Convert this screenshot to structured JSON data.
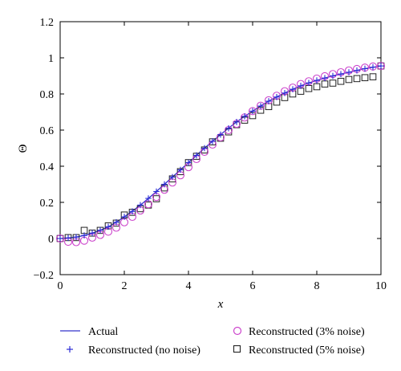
{
  "chart_data": {
    "type": "line",
    "title": "",
    "xlabel": "x",
    "ylabel": "Θ",
    "xlim": [
      0,
      10
    ],
    "ylim": [
      -0.2,
      1.2
    ],
    "xticks": [
      0,
      2,
      4,
      6,
      8,
      10
    ],
    "xtick_labels": [
      "0",
      "2",
      "4",
      "6",
      "8",
      "10"
    ],
    "yticks": [
      -0.2,
      0,
      0.2,
      0.4,
      0.6,
      0.8,
      1,
      1.2
    ],
    "ytick_labels": [
      "−0.2",
      "0",
      "0.2",
      "0.4",
      "0.6",
      "0.8",
      "1",
      "1.2"
    ],
    "grid": false,
    "legend_position": "bottom",
    "colors": {
      "actual": "#3333cc",
      "no_noise": "#2b2bd6",
      "noise3": "#cc44cc",
      "noise5": "#222222"
    },
    "series": [
      {
        "name": "Actual",
        "style": "line",
        "x": [
          0,
          0.5,
          1,
          1.5,
          2,
          2.5,
          3,
          3.5,
          4,
          4.5,
          5,
          5.5,
          6,
          6.5,
          7,
          7.5,
          8,
          8.5,
          9,
          9.5,
          10
        ],
        "y": [
          0,
          0.008,
          0.03,
          0.065,
          0.12,
          0.185,
          0.26,
          0.34,
          0.42,
          0.5,
          0.575,
          0.645,
          0.705,
          0.76,
          0.805,
          0.845,
          0.875,
          0.9,
          0.92,
          0.94,
          0.955
        ]
      },
      {
        "name": "Reconstructed (no noise)",
        "style": "plus",
        "x": [
          0,
          0.25,
          0.5,
          0.75,
          1,
          1.25,
          1.5,
          1.75,
          2,
          2.25,
          2.5,
          2.75,
          3,
          3.25,
          3.5,
          3.75,
          4,
          4.25,
          4.5,
          4.75,
          5,
          5.25,
          5.5,
          5.75,
          6,
          6.25,
          6.5,
          6.75,
          7,
          7.25,
          7.5,
          7.75,
          8,
          8.25,
          8.5,
          8.75,
          9,
          9.25,
          9.5,
          9.75,
          10
        ],
        "y": [
          0,
          0.003,
          0.008,
          0.017,
          0.03,
          0.046,
          0.065,
          0.09,
          0.12,
          0.15,
          0.185,
          0.222,
          0.26,
          0.3,
          0.34,
          0.38,
          0.42,
          0.46,
          0.5,
          0.538,
          0.575,
          0.61,
          0.645,
          0.676,
          0.705,
          0.733,
          0.76,
          0.783,
          0.805,
          0.826,
          0.845,
          0.861,
          0.875,
          0.888,
          0.9,
          0.91,
          0.92,
          0.93,
          0.94,
          0.948,
          0.955
        ]
      },
      {
        "name": "Reconstructed (3% noise)",
        "style": "circle",
        "x": [
          0,
          0.25,
          0.5,
          0.75,
          1,
          1.25,
          1.5,
          1.75,
          2,
          2.25,
          2.5,
          2.75,
          3,
          3.25,
          3.5,
          3.75,
          4,
          4.25,
          4.5,
          4.75,
          5,
          5.25,
          5.5,
          5.75,
          6,
          6.25,
          6.5,
          6.75,
          7,
          7.25,
          7.5,
          7.75,
          8,
          8.25,
          8.5,
          8.75,
          9,
          9.25,
          9.5,
          9.75,
          10
        ],
        "y": [
          0,
          -0.018,
          -0.02,
          -0.012,
          0.005,
          0.02,
          0.038,
          0.06,
          0.09,
          0.12,
          0.155,
          0.19,
          0.23,
          0.27,
          0.31,
          0.35,
          0.395,
          0.44,
          0.48,
          0.52,
          0.56,
          0.6,
          0.635,
          0.67,
          0.705,
          0.735,
          0.765,
          0.79,
          0.815,
          0.835,
          0.855,
          0.87,
          0.885,
          0.898,
          0.91,
          0.92,
          0.93,
          0.938,
          0.946,
          0.952,
          0.955
        ]
      },
      {
        "name": "Reconstructed (5% noise)",
        "style": "square",
        "x": [
          0,
          0.25,
          0.5,
          0.75,
          1,
          1.25,
          1.5,
          1.75,
          2,
          2.25,
          2.5,
          2.75,
          3,
          3.25,
          3.5,
          3.75,
          4,
          4.25,
          4.5,
          4.75,
          5,
          5.25,
          5.5,
          5.75,
          6,
          6.25,
          6.5,
          6.75,
          7,
          7.25,
          7.5,
          7.75,
          8,
          8.25,
          8.5,
          8.75,
          9,
          9.25,
          9.5,
          9.75,
          10
        ],
        "y": [
          0,
          0.005,
          0.005,
          0.045,
          0.03,
          0.045,
          0.07,
          0.085,
          0.13,
          0.145,
          0.165,
          0.185,
          0.22,
          0.28,
          0.33,
          0.37,
          0.42,
          0.455,
          0.49,
          0.535,
          0.555,
          0.59,
          0.63,
          0.655,
          0.68,
          0.71,
          0.73,
          0.755,
          0.78,
          0.8,
          0.815,
          0.83,
          0.84,
          0.855,
          0.86,
          0.87,
          0.88,
          0.885,
          0.89,
          0.895,
          0.955
        ]
      }
    ]
  }
}
